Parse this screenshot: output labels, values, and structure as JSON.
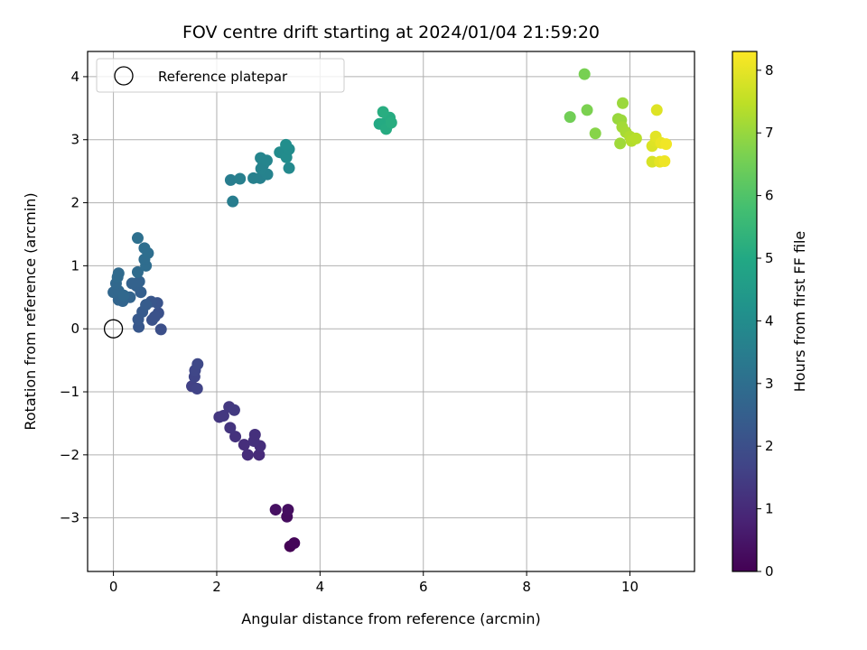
{
  "chart_data": {
    "type": "scatter",
    "title": "FOV centre drift starting at 2024/01/04 21:59:20",
    "xlabel": "Angular distance from reference (arcmin)",
    "ylabel": "Rotation from reference (arcmin)",
    "xlim": [
      -0.5,
      11.25
    ],
    "ylim": [
      -3.85,
      4.4
    ],
    "xticks": [
      0,
      2,
      4,
      6,
      8,
      10
    ],
    "yticks": [
      -3,
      -2,
      -1,
      0,
      1,
      2,
      3,
      4
    ],
    "grid": true,
    "legend": {
      "placement": "top-left",
      "entries": [
        "Reference platepar"
      ]
    },
    "reference_point": {
      "x": 0,
      "y": 0
    },
    "colorbar": {
      "label": "Hours from first FF file",
      "ticks": [
        0,
        1,
        2,
        3,
        4,
        5,
        6,
        7,
        8
      ],
      "range": [
        0,
        8.3
      ],
      "colormap": "viridis"
    },
    "series": [
      {
        "points": [
          {
            "x": 3.42,
            "y": -3.45,
            "c": 0.0
          },
          {
            "x": 3.5,
            "y": -3.4,
            "c": 0.1
          },
          {
            "x": 3.36,
            "y": -2.98,
            "c": 0.25
          },
          {
            "x": 3.38,
            "y": -2.87,
            "c": 0.3
          },
          {
            "x": 3.14,
            "y": -2.87,
            "c": 0.35
          },
          {
            "x": 2.82,
            "y": -2.0,
            "c": 1.0
          },
          {
            "x": 2.6,
            "y": -2.0,
            "c": 1.05
          },
          {
            "x": 2.84,
            "y": -1.86,
            "c": 1.1
          },
          {
            "x": 2.53,
            "y": -1.84,
            "c": 1.1
          },
          {
            "x": 2.72,
            "y": -1.78,
            "c": 1.15
          },
          {
            "x": 2.74,
            "y": -1.68,
            "c": 1.15
          },
          {
            "x": 2.36,
            "y": -1.71,
            "c": 1.2
          },
          {
            "x": 2.26,
            "y": -1.57,
            "c": 1.25
          },
          {
            "x": 2.05,
            "y": -1.4,
            "c": 1.3
          },
          {
            "x": 2.13,
            "y": -1.38,
            "c": 1.35
          },
          {
            "x": 2.24,
            "y": -1.24,
            "c": 1.35
          },
          {
            "x": 2.34,
            "y": -1.29,
            "c": 1.4
          },
          {
            "x": 1.52,
            "y": -0.91,
            "c": 1.6
          },
          {
            "x": 1.62,
            "y": -0.95,
            "c": 1.65
          },
          {
            "x": 1.57,
            "y": -0.76,
            "c": 1.7
          },
          {
            "x": 1.58,
            "y": -0.66,
            "c": 1.75
          },
          {
            "x": 1.63,
            "y": -0.56,
            "c": 1.8
          },
          {
            "x": 0.92,
            "y": -0.01,
            "c": 2.0
          },
          {
            "x": 0.87,
            "y": 0.25,
            "c": 2.05
          },
          {
            "x": 0.75,
            "y": 0.14,
            "c": 2.1
          },
          {
            "x": 0.8,
            "y": 0.19,
            "c": 2.1
          },
          {
            "x": 0.85,
            "y": 0.41,
            "c": 2.15
          },
          {
            "x": 0.73,
            "y": 0.43,
            "c": 2.2
          },
          {
            "x": 0.49,
            "y": 0.03,
            "c": 2.25
          },
          {
            "x": 0.48,
            "y": 0.15,
            "c": 2.3
          },
          {
            "x": 0.56,
            "y": 0.27,
            "c": 2.35
          },
          {
            "x": 0.63,
            "y": 0.38,
            "c": 2.4
          },
          {
            "x": 0.53,
            "y": 0.58,
            "c": 2.5
          },
          {
            "x": 0.45,
            "y": 0.68,
            "c": 2.55
          },
          {
            "x": 0.5,
            "y": 0.75,
            "c": 2.6
          },
          {
            "x": 0.36,
            "y": 0.72,
            "c": 2.6
          },
          {
            "x": 0.32,
            "y": 0.5,
            "c": 2.65
          },
          {
            "x": 0.18,
            "y": 0.44,
            "c": 2.7
          },
          {
            "x": 0.1,
            "y": 0.46,
            "c": 2.7
          },
          {
            "x": 0.0,
            "y": 0.58,
            "c": 2.75
          },
          {
            "x": 0.1,
            "y": 0.6,
            "c": 2.75
          },
          {
            "x": 0.2,
            "y": 0.53,
            "c": 2.8
          },
          {
            "x": 0.05,
            "y": 0.72,
            "c": 2.8
          },
          {
            "x": 0.08,
            "y": 0.82,
            "c": 2.85
          },
          {
            "x": 0.1,
            "y": 0.88,
            "c": 2.85
          },
          {
            "x": 0.47,
            "y": 0.9,
            "c": 2.9
          },
          {
            "x": 0.63,
            "y": 1.0,
            "c": 2.95
          },
          {
            "x": 0.6,
            "y": 1.1,
            "c": 2.95
          },
          {
            "x": 0.67,
            "y": 1.2,
            "c": 3.0
          },
          {
            "x": 0.6,
            "y": 1.28,
            "c": 3.0
          },
          {
            "x": 0.47,
            "y": 1.44,
            "c": 3.05
          },
          {
            "x": 2.31,
            "y": 2.02,
            "c": 3.5
          },
          {
            "x": 2.27,
            "y": 2.36,
            "c": 3.5
          },
          {
            "x": 2.45,
            "y": 2.38,
            "c": 3.55
          },
          {
            "x": 2.71,
            "y": 2.39,
            "c": 3.6
          },
          {
            "x": 2.84,
            "y": 2.39,
            "c": 3.6
          },
          {
            "x": 2.98,
            "y": 2.45,
            "c": 3.65
          },
          {
            "x": 2.86,
            "y": 2.54,
            "c": 3.7
          },
          {
            "x": 2.9,
            "y": 2.6,
            "c": 3.7
          },
          {
            "x": 2.85,
            "y": 2.71,
            "c": 3.75
          },
          {
            "x": 2.97,
            "y": 2.67,
            "c": 3.75
          },
          {
            "x": 3.4,
            "y": 2.55,
            "c": 3.9
          },
          {
            "x": 3.22,
            "y": 2.8,
            "c": 3.95
          },
          {
            "x": 3.3,
            "y": 2.78,
            "c": 3.95
          },
          {
            "x": 3.35,
            "y": 2.72,
            "c": 4.0
          },
          {
            "x": 3.4,
            "y": 2.85,
            "c": 4.0
          },
          {
            "x": 3.34,
            "y": 2.92,
            "c": 4.05
          },
          {
            "x": 5.15,
            "y": 3.25,
            "c": 5.0
          },
          {
            "x": 5.25,
            "y": 3.26,
            "c": 5.05
          },
          {
            "x": 5.3,
            "y": 3.22,
            "c": 5.05
          },
          {
            "x": 5.28,
            "y": 3.17,
            "c": 5.1
          },
          {
            "x": 5.35,
            "y": 3.35,
            "c": 5.1
          },
          {
            "x": 5.22,
            "y": 3.44,
            "c": 5.15
          },
          {
            "x": 5.38,
            "y": 3.27,
            "c": 5.15
          },
          {
            "x": 8.84,
            "y": 3.36,
            "c": 6.5
          },
          {
            "x": 9.12,
            "y": 4.04,
            "c": 6.6
          },
          {
            "x": 9.17,
            "y": 3.47,
            "c": 6.65
          },
          {
            "x": 9.33,
            "y": 3.1,
            "c": 6.8
          },
          {
            "x": 9.77,
            "y": 3.33,
            "c": 7.0
          },
          {
            "x": 9.86,
            "y": 3.58,
            "c": 7.05
          },
          {
            "x": 9.83,
            "y": 3.31,
            "c": 7.05
          },
          {
            "x": 9.81,
            "y": 2.94,
            "c": 7.1
          },
          {
            "x": 9.85,
            "y": 3.2,
            "c": 7.15
          },
          {
            "x": 9.92,
            "y": 3.12,
            "c": 7.2
          },
          {
            "x": 10.0,
            "y": 3.05,
            "c": 7.3
          },
          {
            "x": 10.03,
            "y": 2.98,
            "c": 7.35
          },
          {
            "x": 10.12,
            "y": 3.02,
            "c": 7.4
          },
          {
            "x": 10.43,
            "y": 2.65,
            "c": 7.8
          },
          {
            "x": 10.43,
            "y": 2.9,
            "c": 7.85
          },
          {
            "x": 10.5,
            "y": 2.98,
            "c": 7.9
          },
          {
            "x": 10.52,
            "y": 3.47,
            "c": 7.9
          },
          {
            "x": 10.5,
            "y": 3.05,
            "c": 7.95
          },
          {
            "x": 10.58,
            "y": 2.65,
            "c": 8.0
          },
          {
            "x": 10.6,
            "y": 2.95,
            "c": 8.05
          },
          {
            "x": 10.67,
            "y": 2.66,
            "c": 8.1
          },
          {
            "x": 10.7,
            "y": 2.93,
            "c": 8.15
          }
        ]
      }
    ]
  }
}
